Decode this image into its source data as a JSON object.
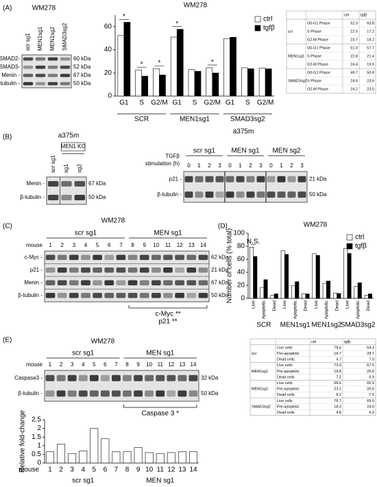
{
  "panels": [
    "(A)",
    "(B)",
    "(C)",
    "(D)",
    "(E)"
  ],
  "chart_data": [
    {
      "type": "bar",
      "title": "WM278",
      "groups": [
        "SCR",
        "MEN1sg1",
        "SMAD3sg2"
      ],
      "categories": [
        "G1",
        "S",
        "G2/M",
        "G1",
        "S",
        "G2/M",
        "G1",
        "S",
        "G2/M"
      ],
      "series": [
        {
          "name": "ctrl",
          "color": "#ffffff",
          "values": [
            52.3,
            22.5,
            23.7,
            51.0,
            22.8,
            24.4,
            49.7,
            24.4,
            24.2
          ]
        },
        {
          "name": "tgfβ",
          "color": "#000000",
          "values": [
            63.8,
            17.2,
            18.2,
            57.7,
            21.4,
            19.9,
            50.8,
            23.6,
            23.5
          ]
        }
      ],
      "ylim": [
        0,
        70
      ],
      "yticks": [
        0,
        20,
        40,
        60
      ],
      "annotations": [
        "*",
        "*",
        "*",
        "*",
        "*"
      ]
    },
    {
      "type": "bar",
      "title": "WM278",
      "ylabel": "Number of cells (% total)",
      "groups": [
        "SCR",
        "MEN1sg1",
        "MEN1sg2",
        "SMAD3sg2"
      ],
      "categories": [
        "Live",
        "Apoptotic",
        "Dead",
        "Live",
        "Apoptotic",
        "Dead",
        "Live",
        "Apoptotic",
        "Dead",
        "Live",
        "Apoptotic",
        "Dead"
      ],
      "series": [
        {
          "name": "ctrl",
          "color": "#ffffff",
          "values": [
            78.6,
            16.7,
            4.7,
            73.0,
            19.8,
            7.2,
            68.6,
            23.2,
            8.2,
            76.7,
            18.3,
            4.8
          ]
        },
        {
          "name": "tgfβ",
          "color": "#000000",
          "values": [
            64.3,
            28.7,
            7.0,
            67.5,
            25.6,
            6.9,
            65.9,
            26.6,
            7.5,
            69.0,
            24.0,
            6.9
          ]
        }
      ],
      "ylim": [
        0,
        100
      ],
      "yticks": [
        0,
        20,
        40,
        60,
        80,
        100
      ],
      "annotations": [
        "N.S."
      ]
    },
    {
      "type": "bar",
      "ylabel": "Relative fold-change",
      "xlabel": "mouse",
      "groups": [
        "scr sg1",
        "MEN sg1"
      ],
      "categories": [
        "1",
        "2",
        "3",
        "4",
        "5",
        "6",
        "7",
        "8",
        "9",
        "10",
        "11",
        "12",
        "13",
        "14"
      ],
      "values": [
        0.65,
        1.1,
        0.55,
        0.7,
        2.0,
        1.4,
        0.65,
        0.65,
        0.9,
        0.6,
        0.55,
        0.6,
        0.65,
        0.65
      ],
      "color": "#ffffff",
      "ylim": [
        0,
        2.5
      ],
      "yticks": [
        0,
        0.5,
        1,
        1.5,
        2,
        2.5
      ]
    }
  ],
  "blots": {
    "a": {
      "title": "WM278",
      "lanes": [
        "scr sg1",
        "MEN1sg1",
        "MEN1sg2",
        "SMAD3sg2"
      ],
      "rows": [
        "SMAD2-",
        "SMAD3-",
        "Menin -",
        "β-tubulin -"
      ],
      "sizes": [
        "60 kDa",
        "52 kDa",
        "67 kDa",
        "50 kDa"
      ]
    },
    "b1": {
      "title": "a375m",
      "group": "MEN1 KO",
      "lanes": [
        "scr sg1",
        "sg1",
        "sg2"
      ],
      "rows": [
        "Menin -",
        "β-tubulin -"
      ],
      "sizes": [
        "67 kDa",
        "50 kDa"
      ]
    },
    "b2": {
      "title": "a375m",
      "condition": [
        "TGFβ",
        "stimulation (h)"
      ],
      "groups": [
        "scr sg1",
        "MEN sg1",
        "MEN sg2"
      ],
      "lanes": [
        "0",
        "1",
        "2",
        "3",
        "0",
        "1",
        "2",
        "3",
        "0",
        "1",
        "2",
        "3"
      ],
      "rows": [
        "p21 -",
        "β-tubulin -"
      ],
      "sizes": [
        "21 kDa",
        "50 kDa"
      ]
    },
    "c": {
      "title": "WM278",
      "groups": [
        "scr sg1",
        "MEN sg1"
      ],
      "lane_label": "mouse",
      "lanes": [
        "1",
        "2",
        "3",
        "4",
        "5",
        "6",
        "7",
        "8",
        "9",
        "10",
        "11",
        "12",
        "13",
        "14"
      ],
      "rows": [
        "c-Myc -",
        "p21 -",
        "Menin -",
        "β-tubulin -"
      ],
      "sizes": [
        "62 kDa",
        "21 kDa",
        "67 kDa",
        "50 kDa"
      ],
      "notes": [
        "c-Myc **",
        "p21 **"
      ]
    },
    "e": {
      "title": "WM278",
      "groups": [
        "scr sg1",
        "MEN sg1"
      ],
      "lane_label": "mouse",
      "lanes": [
        "1",
        "2",
        "3",
        "4",
        "5",
        "6",
        "7",
        "8",
        "9",
        "10",
        "11",
        "12",
        "13",
        "14"
      ],
      "rows": [
        "Caspase3 -",
        "β-tubulin -"
      ],
      "sizes": [
        "32 kDa",
        "50 kDa"
      ],
      "notes": [
        "Caspase 3 *"
      ]
    }
  },
  "tables": [
    {
      "header": [
        "ctrl",
        "tgfβ"
      ],
      "groups": [
        {
          "name": "scr",
          "rows": [
            [
              "G0-G1 Phase",
              "52.3",
              "63.8"
            ],
            [
              "S Phase",
              "22.5",
              "17.2"
            ],
            [
              "G2-M Phase",
              "23.7",
              "18.2"
            ]
          ]
        },
        {
          "name": "MEN1sg1",
          "rows": [
            [
              "G0-G1 Phase",
              "51.0",
              "57.7"
            ],
            [
              "S Phase",
              "22.8",
              "21.4"
            ],
            [
              "G2-M Phase",
              "24.4",
              "19.9"
            ]
          ]
        },
        {
          "name": "SMAD3sg2",
          "rows": [
            [
              "G0-G1 Phase",
              "49.7",
              "50.8"
            ],
            [
              "S Phase",
              "24.4",
              "23.6"
            ],
            [
              "G2-M Phase",
              "24.2",
              "23.5"
            ]
          ]
        }
      ]
    },
    {
      "header": [
        "ctrl",
        "tgfβ"
      ],
      "groups": [
        {
          "name": "scr",
          "rows": [
            [
              "Live cells",
              "78.6",
              "64.3"
            ],
            [
              "Pre-apoptotic",
              "16.7",
              "28.7"
            ],
            [
              "Dead cells",
              "4.7",
              "7.0"
            ]
          ]
        },
        {
          "name": "MEN1sg1",
          "rows": [
            [
              "Live cells",
              "73.0",
              "67.5"
            ],
            [
              "Pre-apoptotic",
              "19.8",
              "25.6"
            ],
            [
              "Dead cells",
              "7.2",
              "6.9"
            ]
          ]
        },
        {
          "name": "MEN1sg2",
          "rows": [
            [
              "Live cells",
              "68.6",
              "65.9"
            ],
            [
              "Pre-apoptotic",
              "23.2",
              "26.6"
            ],
            [
              "Dead cells",
              "8.2",
              "7.5"
            ]
          ]
        },
        {
          "name": "SMAD3sg2",
          "rows": [
            [
              "Live cells",
              "76.7",
              "69.0"
            ],
            [
              "Pre-apoptotic",
              "18.3",
              "24.0"
            ],
            [
              "Dead cells",
              "4.8",
              "6.9"
            ]
          ]
        }
      ]
    }
  ]
}
